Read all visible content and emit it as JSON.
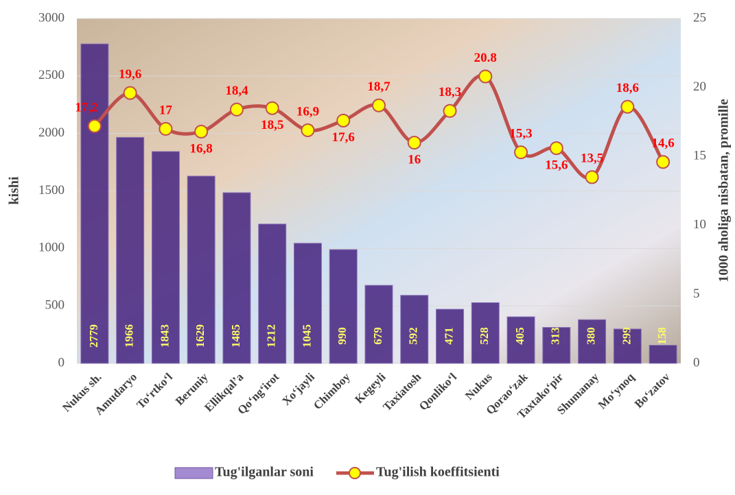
{
  "chart_data": {
    "type": "bar-line",
    "categories": [
      "Nukus sh.",
      "Amudaryo",
      "To‘rtko‘l",
      "Beruniy",
      "Ellikqal’a",
      "Qo‘ng‘irot",
      "Xo‘jayli",
      "Chimboy",
      "Kegeyli",
      "Taxiatosh",
      "Qonliko‘l",
      "Nukus",
      "Qorao‘zak",
      "Taxtako‘pir",
      "Shumanay",
      "Mo‘ynoq",
      "Bo‘zatov"
    ],
    "series": [
      {
        "name": "Tug'ilganlar soni",
        "type": "bar",
        "color": "#4e2d85",
        "values": [
          2779,
          1966,
          1843,
          1629,
          1485,
          1212,
          1045,
          990,
          679,
          592,
          471,
          528,
          405,
          313,
          380,
          299,
          158
        ]
      },
      {
        "name": "Tug'ilish koeffitsienti",
        "type": "line",
        "axis": "y2",
        "color": "#c0504d",
        "marker_color": "#ffff00",
        "values": [
          17.2,
          19.6,
          17,
          16.8,
          18.4,
          18.5,
          16.9,
          17.6,
          18.7,
          16,
          18.3,
          20.8,
          15.3,
          15.6,
          13.5,
          18.6,
          14.6
        ],
        "value_labels": [
          "17,2",
          "19,6",
          "17",
          "16,8",
          "18,4",
          "18,5",
          "16,9",
          "17,6",
          "18,7",
          "16",
          "18,3",
          "20.8",
          "15,3",
          "15,6",
          "13,5",
          "18,6",
          "14,6"
        ]
      }
    ],
    "ylabel": "kishi",
    "y2label": "1000 aholiga nisbatan, promille",
    "ylim": [
      0,
      3000
    ],
    "yticks": [
      0,
      500,
      1000,
      1500,
      2000,
      2500,
      3000
    ],
    "y2lim": [
      0,
      25
    ],
    "y2ticks": [
      0,
      5,
      10,
      15,
      20,
      25
    ],
    "grid": true,
    "legend": "bottom"
  }
}
